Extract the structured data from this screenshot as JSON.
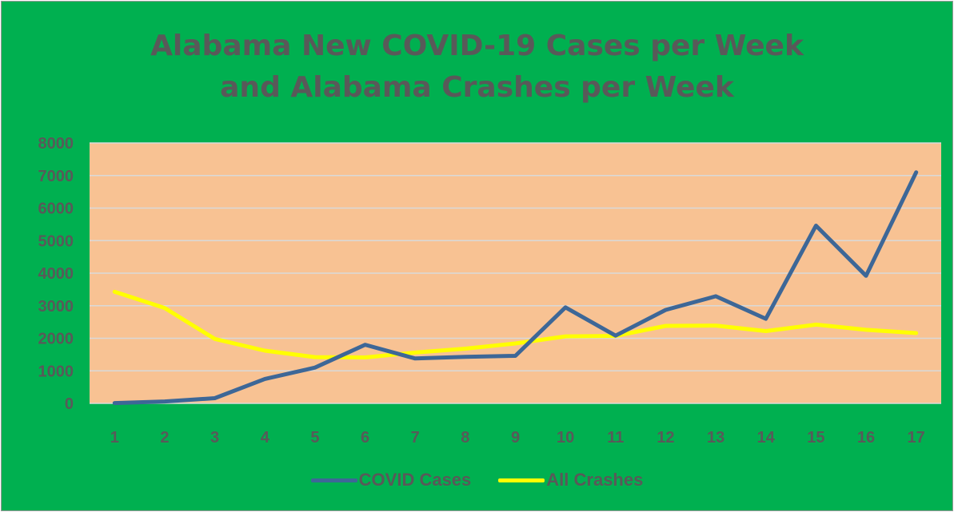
{
  "chart_data": {
    "type": "line",
    "title_lines": [
      "Alabama New COVID-19 Cases per Week",
      "and Alabama Crashes per Week"
    ],
    "x": [
      1,
      2,
      3,
      4,
      5,
      6,
      7,
      8,
      9,
      10,
      11,
      12,
      13,
      14,
      15,
      16,
      17
    ],
    "x_tick_labels": [
      "1",
      "2",
      "3",
      "4",
      "5",
      "6",
      "7",
      "8",
      "9",
      "10",
      "11",
      "12",
      "13",
      "14",
      "15",
      "16",
      "17"
    ],
    "y_ticks": [
      0,
      1000,
      2000,
      3000,
      4000,
      5000,
      6000,
      7000,
      8000
    ],
    "y_tick_labels": [
      "0",
      "1000",
      "2000",
      "3000",
      "4000",
      "5000",
      "6000",
      "7000",
      "8000"
    ],
    "ylim": [
      0,
      8000
    ],
    "xlabel": "",
    "ylabel": "",
    "grid": "horizontal",
    "legend_position": "bottom",
    "plot_background": "#f8c293",
    "series": [
      {
        "name": "COVID Cases",
        "color": "#3d6797",
        "values": [
          10,
          60,
          160,
          750,
          1100,
          1800,
          1380,
          1430,
          1460,
          2950,
          2080,
          2870,
          3290,
          2600,
          5460,
          3920,
          7100
        ]
      },
      {
        "name": "All Crashes",
        "color": "#ffff00",
        "values": [
          3430,
          2930,
          1980,
          1620,
          1420,
          1410,
          1560,
          1680,
          1840,
          2060,
          2070,
          2380,
          2390,
          2220,
          2420,
          2260,
          2160
        ]
      }
    ]
  }
}
